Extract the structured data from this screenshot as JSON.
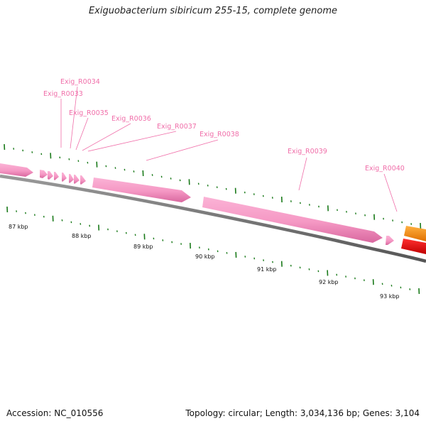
{
  "title": "Exiguobacterium sibiricum 255-15, complete genome",
  "footer": {
    "accession": "Accession: NC_010556",
    "summary": "Topology: circular; Length: 3,034,136 bp; Genes: 3,104"
  },
  "genes": [
    {
      "name": "Exig_R0033"
    },
    {
      "name": "Exig_R0034"
    },
    {
      "name": "Exig_R0035"
    },
    {
      "name": "Exig_R0036"
    },
    {
      "name": "Exig_R0037"
    },
    {
      "name": "Exig_R0038"
    },
    {
      "name": "Exig_R0039"
    },
    {
      "name": "Exig_R0040"
    }
  ],
  "kbp_labels": [
    "87 kbp",
    "88 kbp",
    "89 kbp",
    "90 kbp",
    "91 kbp",
    "92 kbp",
    "93 kbp"
  ],
  "colors": {
    "gene": "#f79ac7",
    "gene_dark": "#d9689f",
    "backbone": "#7a7a7a",
    "tick": "#1a7a1a",
    "label": "#f06ea9",
    "orange_feature": "#ff8c00",
    "red_feature": "#ee0000"
  }
}
